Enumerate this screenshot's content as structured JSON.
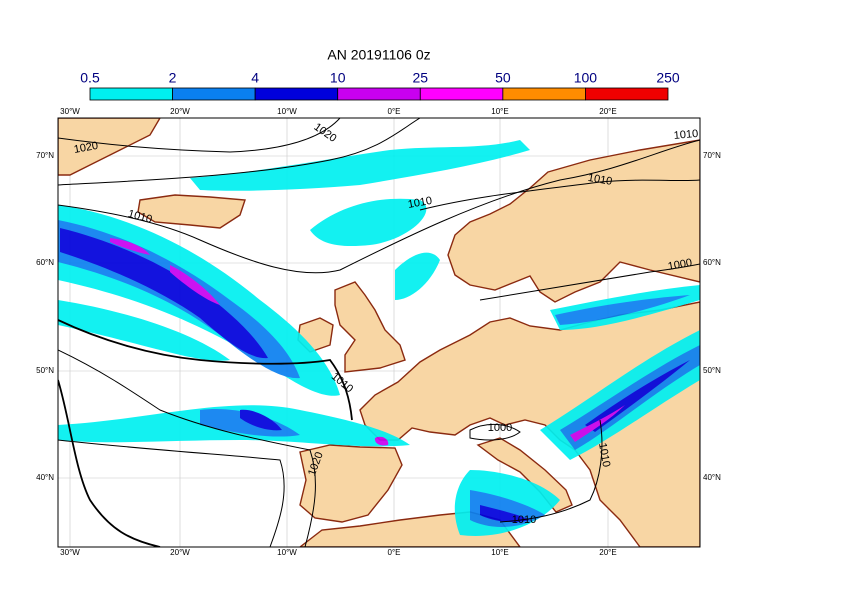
{
  "title": "AN  20191106 0z",
  "colorbar": {
    "bounds": [
      0.5,
      2,
      4,
      10,
      25,
      50,
      100,
      250
    ],
    "colors": [
      "#00f0f0",
      "#0a80f0",
      "#0000dc",
      "#c800f0",
      "#ff00ff",
      "#ff8c00",
      "#f00000"
    ]
  },
  "lon_labels": [
    "30°W",
    "20°W",
    "10°W",
    "0°E",
    "10°E",
    "20°E"
  ],
  "lat_labels": [
    "70°N",
    "60°N",
    "50°N",
    "40°N"
  ],
  "contour_labels": [
    1020,
    1020,
    1010,
    1010,
    1010,
    1010,
    1000,
    1010,
    1000,
    1010,
    1020,
    1010
  ]
}
